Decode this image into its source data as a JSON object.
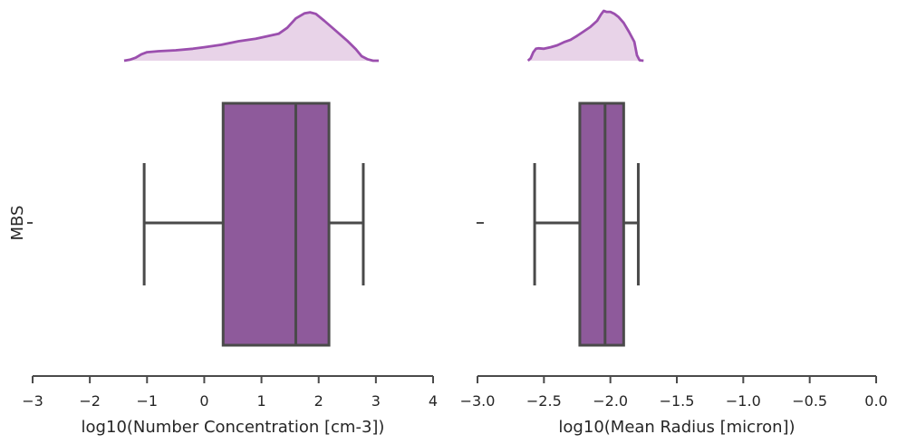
{
  "figure": {
    "ylabel": "MBS",
    "category": "",
    "box_color": "#8E5A9B",
    "kde_line_color": "#9B4FAE",
    "kde_fill_color": "#E8D3E8",
    "edge_color": "#4A4A4A"
  },
  "chart_data": [
    {
      "type": "box",
      "category": "",
      "xlabel": "log10(Number Concentration [cm-3])",
      "xlim": [
        -3,
        4
      ],
      "xticks": [
        -3,
        -2,
        -1,
        0,
        1,
        2,
        3,
        4
      ],
      "xticklabels": [
        "−3",
        "−2",
        "−1",
        "0",
        "1",
        "2",
        "3",
        "4"
      ],
      "whisker_low": -1.05,
      "q1": 0.33,
      "median": 1.6,
      "q3": 2.18,
      "whisker_high": 2.78,
      "outliers": [],
      "kde": {
        "x": [
          -1.4,
          -1.3,
          -1.2,
          -1.1,
          -1.0,
          -0.8,
          -0.5,
          -0.2,
          0.0,
          0.3,
          0.6,
          0.9,
          1.1,
          1.3,
          1.45,
          1.6,
          1.75,
          1.85,
          1.95,
          2.1,
          2.3,
          2.5,
          2.65,
          2.75,
          2.85,
          2.95,
          3.05
        ],
        "density": [
          0.0,
          0.02,
          0.06,
          0.13,
          0.17,
          0.19,
          0.21,
          0.24,
          0.27,
          0.32,
          0.39,
          0.44,
          0.49,
          0.54,
          0.66,
          0.85,
          0.95,
          0.97,
          0.94,
          0.8,
          0.6,
          0.4,
          0.23,
          0.09,
          0.03,
          0.0,
          0.0
        ]
      }
    },
    {
      "type": "box",
      "category": "",
      "xlabel": "log10(Mean Radius [micron])",
      "xlim": [
        -3.0,
        0.0
      ],
      "xticks": [
        -3.0,
        -2.5,
        -2.0,
        -1.5,
        -1.0,
        -0.5,
        0.0
      ],
      "xticklabels": [
        "−3.0",
        "−2.5",
        "−2.0",
        "−1.5",
        "−1.0",
        "−0.5",
        "0.0"
      ],
      "whisker_low": -2.57,
      "q1": -2.23,
      "median": -2.04,
      "q3": -1.9,
      "whisker_high": -1.79,
      "outliers": [
        -2.98
      ],
      "kde": {
        "x": [
          -2.62,
          -2.6,
          -2.58,
          -2.56,
          -2.54,
          -2.5,
          -2.45,
          -2.4,
          -2.35,
          -2.3,
          -2.25,
          -2.2,
          -2.15,
          -2.1,
          -2.07,
          -2.05,
          -2.03,
          -2.0,
          -1.97,
          -1.94,
          -1.9,
          -1.86,
          -1.82,
          -1.8,
          -1.78,
          -1.75
        ],
        "density": [
          0.0,
          0.05,
          0.17,
          0.24,
          0.25,
          0.24,
          0.27,
          0.31,
          0.37,
          0.42,
          0.5,
          0.59,
          0.68,
          0.8,
          0.93,
          1.0,
          0.98,
          0.98,
          0.94,
          0.88,
          0.76,
          0.58,
          0.38,
          0.11,
          0.01,
          0.0
        ]
      }
    }
  ]
}
